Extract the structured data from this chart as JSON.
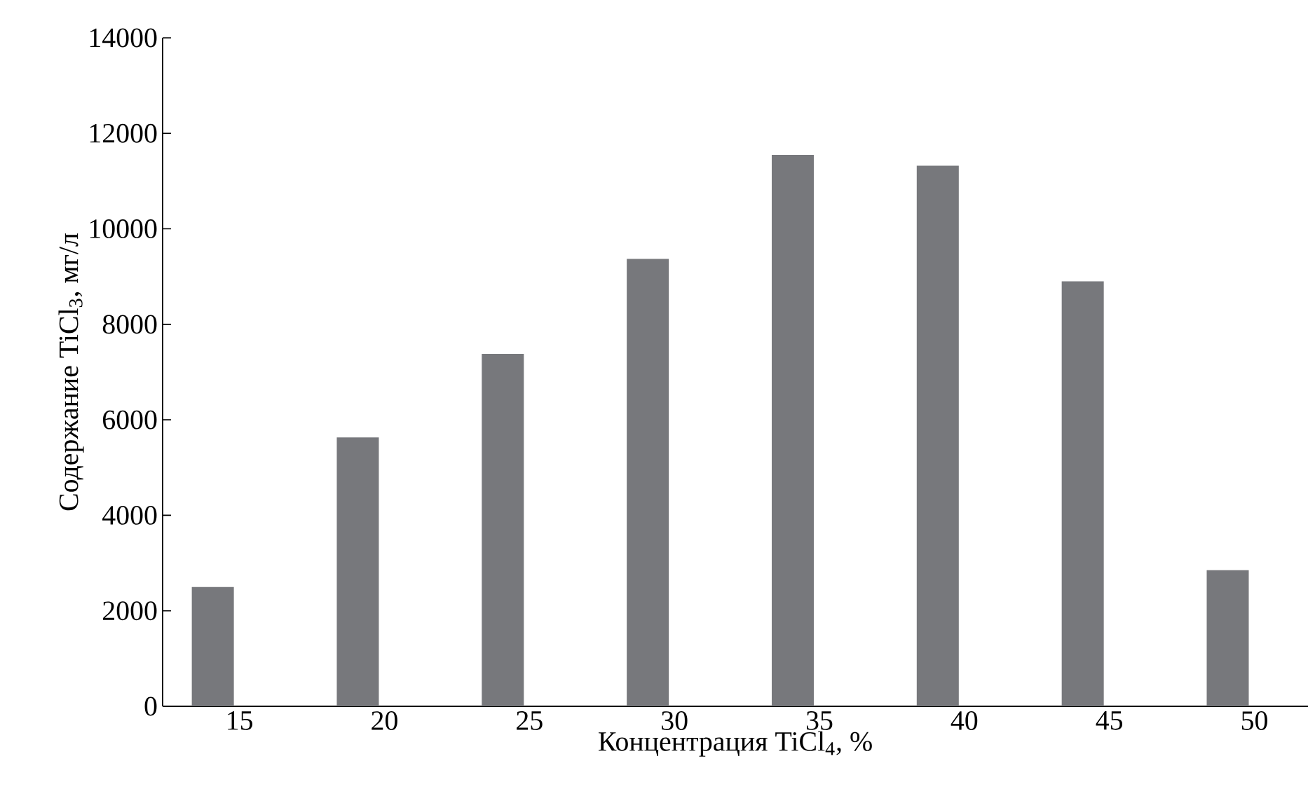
{
  "chart_data": {
    "type": "bar",
    "xlabel": "Концентрация TiCl$_{4}$, %",
    "ylabel": "Содержание TiCl$_{3}$, мг/л",
    "categories": [
      "15",
      "20",
      "25",
      "30",
      "35",
      "40",
      "45",
      "50"
    ],
    "values": [
      2500,
      5630,
      7380,
      9370,
      11550,
      11320,
      8900,
      2850
    ],
    "color": "#77787c",
    "ylim": [
      0,
      14000
    ],
    "yticks": [
      0,
      2000,
      4000,
      6000,
      8000,
      10000,
      12000,
      14000
    ],
    "grid": false
  }
}
